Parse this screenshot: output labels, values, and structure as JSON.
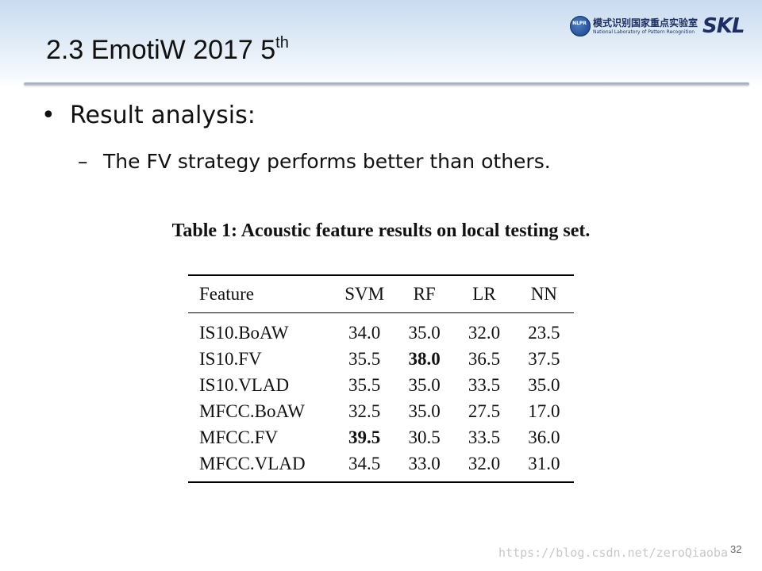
{
  "header": {
    "title": "2.3 EmotiW 2017 5",
    "title_sup": "th"
  },
  "logo": {
    "emblem": "NLPR",
    "chinese": "模式识别国家重点实验室",
    "english": "National Laboratory of Pattern Recognition",
    "short": "SKL"
  },
  "content": {
    "bullet_symbol": "•",
    "bullet": "Result analysis:",
    "sub_symbol": "–",
    "sub_bullet": "The FV strategy performs better than others."
  },
  "table": {
    "caption": "Table 1: Acoustic feature results on local testing set.",
    "headers": [
      "Feature",
      "SVM",
      "RF",
      "LR",
      "NN"
    ],
    "rows": [
      [
        "IS10.BoAW",
        "34.0",
        "35.0",
        "32.0",
        "23.5"
      ],
      [
        "IS10.FV",
        "35.5",
        "38.0",
        "36.5",
        "37.5"
      ],
      [
        "IS10.VLAD",
        "35.5",
        "35.0",
        "33.5",
        "35.0"
      ],
      [
        "MFCC.BoAW",
        "32.5",
        "35.0",
        "27.5",
        "17.0"
      ],
      [
        "MFCC.FV",
        "39.5",
        "30.5",
        "33.5",
        "36.0"
      ],
      [
        "MFCC.VLAD",
        "34.5",
        "33.0",
        "32.0",
        "31.0"
      ]
    ],
    "bold_cells": [
      "1.2",
      "4.1"
    ]
  },
  "footer": {
    "watermark": "https://blog.csdn.net/zeroQiaoba",
    "page_number": "32"
  }
}
